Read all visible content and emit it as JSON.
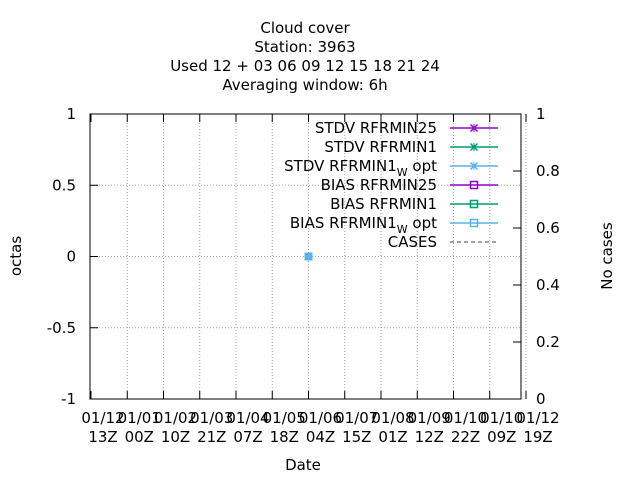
{
  "chart_data": {
    "type": "line",
    "title_lines": [
      "Cloud cover",
      "Station:      3963",
      "Used  12 + 03 06 09 12 15 18 21 24",
      "Averaging window:  6h"
    ],
    "xlabel": "Date",
    "ylabel": "octas",
    "y2label": "No cases",
    "ylim": [
      -1,
      1
    ],
    "y2lim": [
      0,
      1
    ],
    "y_ticks": [
      {
        "value": 1,
        "label": "1"
      },
      {
        "value": 0.5,
        "label": "0.5"
      },
      {
        "value": 0,
        "label": "0"
      },
      {
        "value": -0.5,
        "label": "-0.5"
      },
      {
        "value": -1,
        "label": "-1"
      }
    ],
    "y2_ticks": [
      {
        "value": 1,
        "label": "1"
      },
      {
        "value": 0.8,
        "label": "0.8"
      },
      {
        "value": 0.6,
        "label": "0.6"
      },
      {
        "value": 0.4,
        "label": "0.4"
      },
      {
        "value": 0.2,
        "label": "0.2"
      },
      {
        "value": 0,
        "label": "0"
      }
    ],
    "x_ticks": [
      {
        "line1": "01/12",
        "line2": "13Z"
      },
      {
        "line1": "01/01",
        "line2": "00Z"
      },
      {
        "line1": "01/02",
        "line2": "10Z"
      },
      {
        "line1": "01/03",
        "line2": "21Z"
      },
      {
        "line1": "01/04",
        "line2": "07Z"
      },
      {
        "line1": "01/05",
        "line2": "18Z"
      },
      {
        "line1": "01/06",
        "line2": "04Z"
      },
      {
        "line1": "01/07",
        "line2": "15Z"
      },
      {
        "line1": "01/08",
        "line2": "01Z"
      },
      {
        "line1": "01/09",
        "line2": "12Z"
      },
      {
        "line1": "01/10",
        "line2": "22Z"
      },
      {
        "line1": "01/10",
        "line2": "09Z"
      },
      {
        "line1": "01/12",
        "line2": "19Z"
      }
    ],
    "grid": true,
    "legend_position": "top-right",
    "series": [
      {
        "name": "STDV RFRMIN25",
        "name_sub": "",
        "name_suffix": "",
        "color": "#9400d3",
        "marker": "x",
        "dash": false,
        "axis": "y",
        "points": []
      },
      {
        "name": "STDV RFRMIN1",
        "name_sub": "",
        "name_suffix": "",
        "color": "#009e73",
        "marker": "x",
        "dash": false,
        "axis": "y",
        "points": []
      },
      {
        "name": "STDV RFRMIN1",
        "name_sub": "W",
        "name_suffix": " opt",
        "color": "#56b4e9",
        "marker": "x",
        "dash": false,
        "axis": "y",
        "points": []
      },
      {
        "name": "BIAS RFRMIN25",
        "name_sub": "",
        "name_suffix": "",
        "color": "#9400d3",
        "marker": "square",
        "dash": false,
        "axis": "y",
        "points": []
      },
      {
        "name": "BIAS RFRMIN1",
        "name_sub": "",
        "name_suffix": "",
        "color": "#009e73",
        "marker": "square",
        "dash": false,
        "axis": "y",
        "points": []
      },
      {
        "name": "BIAS RFRMIN1",
        "name_sub": "W",
        "name_suffix": " opt",
        "color": "#56b4e9",
        "marker": "square",
        "dash": false,
        "axis": "y",
        "points": [
          {
            "x_tick": 6,
            "y": 0
          }
        ]
      },
      {
        "name": "CASES",
        "name_sub": "",
        "name_suffix": "",
        "color": "#808080",
        "marker": "none",
        "dash": true,
        "axis": "y2",
        "points": []
      }
    ]
  }
}
